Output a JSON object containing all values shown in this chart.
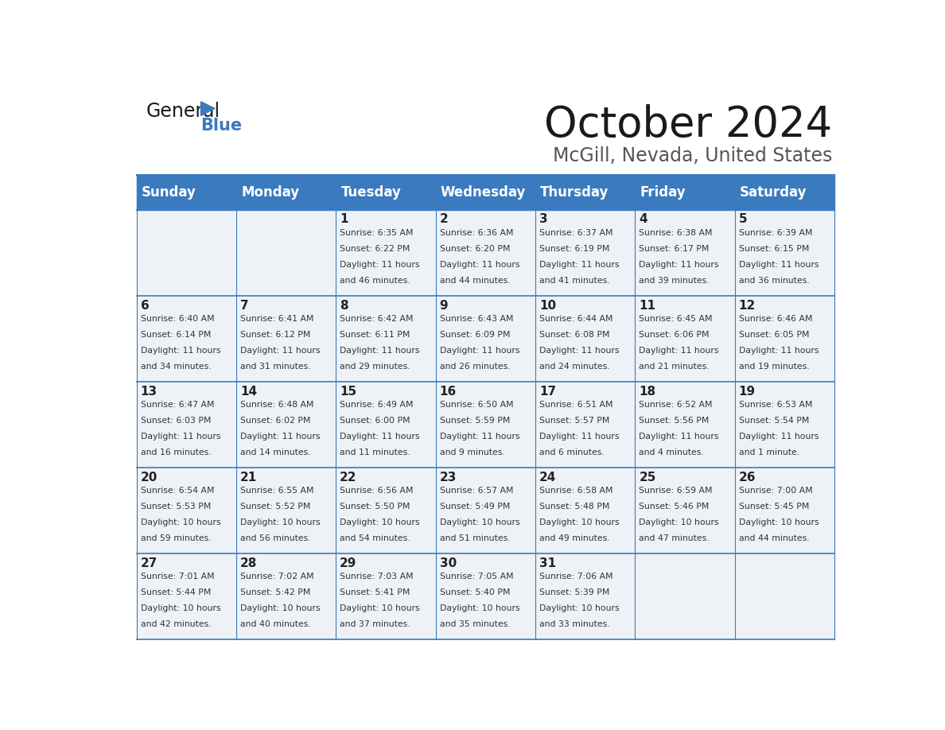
{
  "title": "October 2024",
  "subtitle": "McGill, Nevada, United States",
  "header_color": "#3a7abf",
  "header_text_color": "#ffffff",
  "cell_bg_color": "#eef2f7",
  "day_number_color": "#222222",
  "text_color": "#333333",
  "line_color": "#3a7abf",
  "days_of_week": [
    "Sunday",
    "Monday",
    "Tuesday",
    "Wednesday",
    "Thursday",
    "Friday",
    "Saturday"
  ],
  "calendar": [
    [
      {
        "day": "",
        "info": ""
      },
      {
        "day": "",
        "info": ""
      },
      {
        "day": "1",
        "info": "Sunrise: 6:35 AM\nSunset: 6:22 PM\nDaylight: 11 hours\nand 46 minutes."
      },
      {
        "day": "2",
        "info": "Sunrise: 6:36 AM\nSunset: 6:20 PM\nDaylight: 11 hours\nand 44 minutes."
      },
      {
        "day": "3",
        "info": "Sunrise: 6:37 AM\nSunset: 6:19 PM\nDaylight: 11 hours\nand 41 minutes."
      },
      {
        "day": "4",
        "info": "Sunrise: 6:38 AM\nSunset: 6:17 PM\nDaylight: 11 hours\nand 39 minutes."
      },
      {
        "day": "5",
        "info": "Sunrise: 6:39 AM\nSunset: 6:15 PM\nDaylight: 11 hours\nand 36 minutes."
      }
    ],
    [
      {
        "day": "6",
        "info": "Sunrise: 6:40 AM\nSunset: 6:14 PM\nDaylight: 11 hours\nand 34 minutes."
      },
      {
        "day": "7",
        "info": "Sunrise: 6:41 AM\nSunset: 6:12 PM\nDaylight: 11 hours\nand 31 minutes."
      },
      {
        "day": "8",
        "info": "Sunrise: 6:42 AM\nSunset: 6:11 PM\nDaylight: 11 hours\nand 29 minutes."
      },
      {
        "day": "9",
        "info": "Sunrise: 6:43 AM\nSunset: 6:09 PM\nDaylight: 11 hours\nand 26 minutes."
      },
      {
        "day": "10",
        "info": "Sunrise: 6:44 AM\nSunset: 6:08 PM\nDaylight: 11 hours\nand 24 minutes."
      },
      {
        "day": "11",
        "info": "Sunrise: 6:45 AM\nSunset: 6:06 PM\nDaylight: 11 hours\nand 21 minutes."
      },
      {
        "day": "12",
        "info": "Sunrise: 6:46 AM\nSunset: 6:05 PM\nDaylight: 11 hours\nand 19 minutes."
      }
    ],
    [
      {
        "day": "13",
        "info": "Sunrise: 6:47 AM\nSunset: 6:03 PM\nDaylight: 11 hours\nand 16 minutes."
      },
      {
        "day": "14",
        "info": "Sunrise: 6:48 AM\nSunset: 6:02 PM\nDaylight: 11 hours\nand 14 minutes."
      },
      {
        "day": "15",
        "info": "Sunrise: 6:49 AM\nSunset: 6:00 PM\nDaylight: 11 hours\nand 11 minutes."
      },
      {
        "day": "16",
        "info": "Sunrise: 6:50 AM\nSunset: 5:59 PM\nDaylight: 11 hours\nand 9 minutes."
      },
      {
        "day": "17",
        "info": "Sunrise: 6:51 AM\nSunset: 5:57 PM\nDaylight: 11 hours\nand 6 minutes."
      },
      {
        "day": "18",
        "info": "Sunrise: 6:52 AM\nSunset: 5:56 PM\nDaylight: 11 hours\nand 4 minutes."
      },
      {
        "day": "19",
        "info": "Sunrise: 6:53 AM\nSunset: 5:54 PM\nDaylight: 11 hours\nand 1 minute."
      }
    ],
    [
      {
        "day": "20",
        "info": "Sunrise: 6:54 AM\nSunset: 5:53 PM\nDaylight: 10 hours\nand 59 minutes."
      },
      {
        "day": "21",
        "info": "Sunrise: 6:55 AM\nSunset: 5:52 PM\nDaylight: 10 hours\nand 56 minutes."
      },
      {
        "day": "22",
        "info": "Sunrise: 6:56 AM\nSunset: 5:50 PM\nDaylight: 10 hours\nand 54 minutes."
      },
      {
        "day": "23",
        "info": "Sunrise: 6:57 AM\nSunset: 5:49 PM\nDaylight: 10 hours\nand 51 minutes."
      },
      {
        "day": "24",
        "info": "Sunrise: 6:58 AM\nSunset: 5:48 PM\nDaylight: 10 hours\nand 49 minutes."
      },
      {
        "day": "25",
        "info": "Sunrise: 6:59 AM\nSunset: 5:46 PM\nDaylight: 10 hours\nand 47 minutes."
      },
      {
        "day": "26",
        "info": "Sunrise: 7:00 AM\nSunset: 5:45 PM\nDaylight: 10 hours\nand 44 minutes."
      }
    ],
    [
      {
        "day": "27",
        "info": "Sunrise: 7:01 AM\nSunset: 5:44 PM\nDaylight: 10 hours\nand 42 minutes."
      },
      {
        "day": "28",
        "info": "Sunrise: 7:02 AM\nSunset: 5:42 PM\nDaylight: 10 hours\nand 40 minutes."
      },
      {
        "day": "29",
        "info": "Sunrise: 7:03 AM\nSunset: 5:41 PM\nDaylight: 10 hours\nand 37 minutes."
      },
      {
        "day": "30",
        "info": "Sunrise: 7:05 AM\nSunset: 5:40 PM\nDaylight: 10 hours\nand 35 minutes."
      },
      {
        "day": "31",
        "info": "Sunrise: 7:06 AM\nSunset: 5:39 PM\nDaylight: 10 hours\nand 33 minutes."
      },
      {
        "day": "",
        "info": ""
      },
      {
        "day": "",
        "info": ""
      }
    ]
  ]
}
